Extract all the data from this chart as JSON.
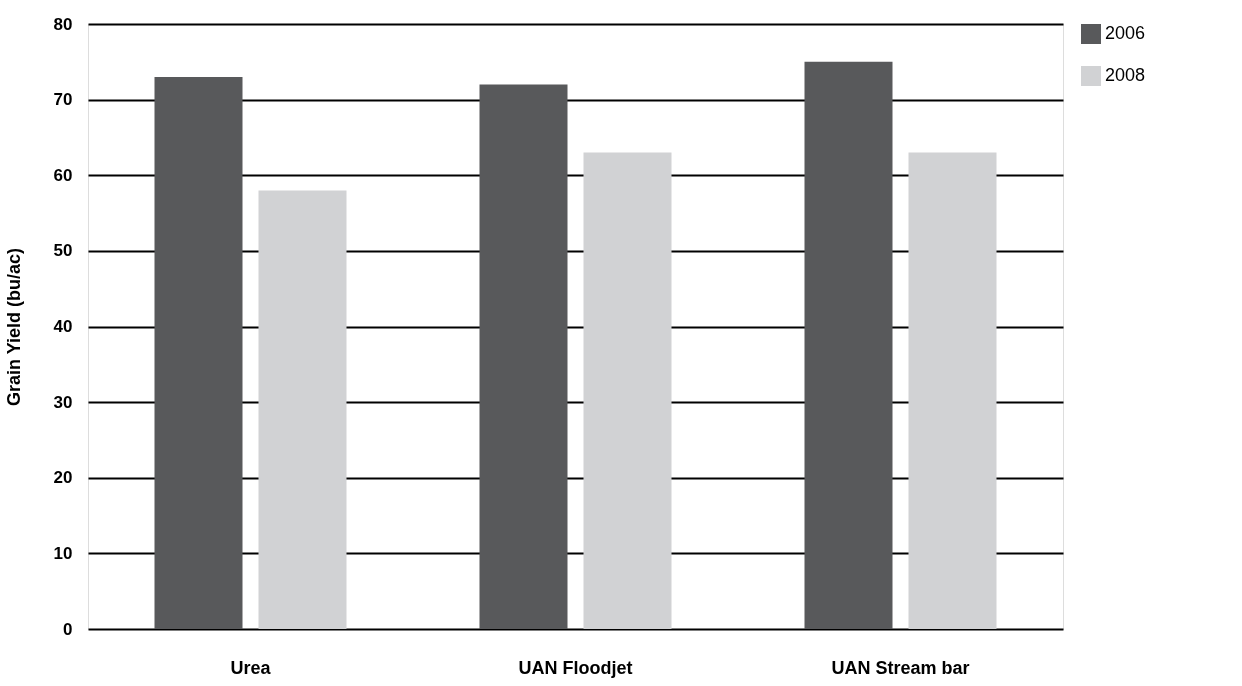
{
  "chart_data": {
    "type": "bar",
    "ylabel": "Grain Yield (bu/ac)",
    "categories": [
      "Urea",
      "UAN Floodjet",
      "UAN Stream bar"
    ],
    "series": [
      {
        "name": "2006",
        "color": "#58595b",
        "values": [
          73,
          72,
          75
        ]
      },
      {
        "name": "2008",
        "color": "#d1d2d4",
        "values": [
          58,
          63,
          63
        ]
      }
    ],
    "ylim": [
      0,
      80
    ],
    "yticks": [
      0,
      10,
      20,
      30,
      40,
      50,
      60,
      70,
      80
    ],
    "grid": "y",
    "legend": "right"
  }
}
